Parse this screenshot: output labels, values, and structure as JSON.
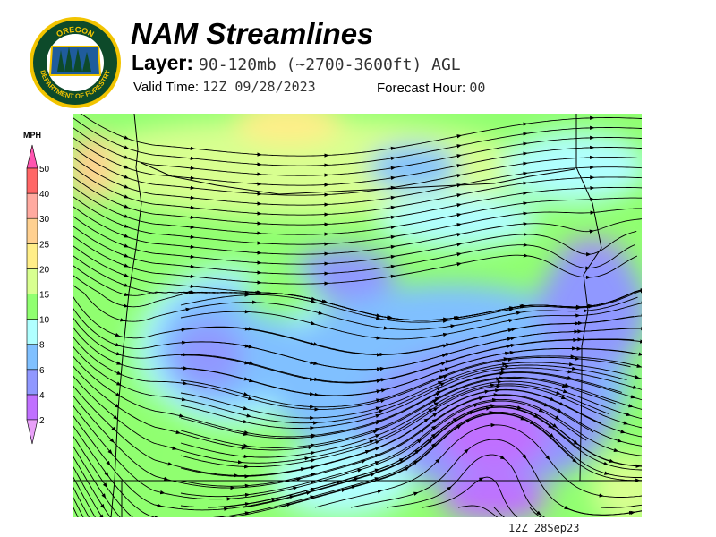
{
  "logo": {
    "top_text": "OREGON",
    "bottom_text": "DEPARTMENT OF FORESTRY"
  },
  "header": {
    "title": "NAM Streamlines",
    "layer_label": "Layer:",
    "layer_value": "90-120mb (~2700-3600ft) AGL",
    "valid_label": "Valid Time:",
    "valid_value": "12Z 09/28/2023",
    "forecast_label": "Forecast Hour:",
    "forecast_value": "00"
  },
  "colorbar": {
    "unit": "MPH",
    "levels": [
      "2",
      "4",
      "6",
      "8",
      "10",
      "15",
      "20",
      "25",
      "30",
      "40",
      "50"
    ],
    "colors": [
      "#e8a0f8",
      "#c070ff",
      "#9098ff",
      "#80c0ff",
      "#b0ffff",
      "#90ff70",
      "#d8ff90",
      "#ffee88",
      "#ffd090",
      "#ffaaa0",
      "#ff6666",
      "#ff55b0"
    ]
  },
  "map": {
    "timestamp": "12Z 28Sep23"
  }
}
